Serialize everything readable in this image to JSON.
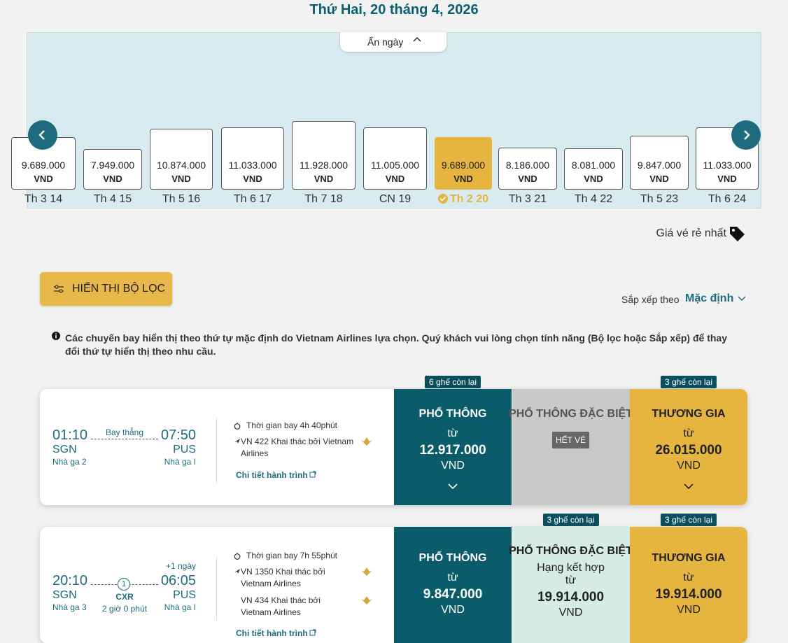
{
  "header": {
    "date": "Thứ Hai, 20 tháng 4, 2026",
    "hide_dates": "Ẩn ngày"
  },
  "date_strip": [
    {
      "price": "9.689.000",
      "currency": "VND",
      "day": "Th 3 14"
    },
    {
      "price": "7.949.000",
      "currency": "VND",
      "day": "Th 4 15"
    },
    {
      "price": "10.874.000",
      "currency": "VND",
      "day": "Th 5 16"
    },
    {
      "price": "11.033.000",
      "currency": "VND",
      "day": "Th 6 17"
    },
    {
      "price": "11.928.000",
      "currency": "VND",
      "day": "Th 7 18"
    },
    {
      "price": "11.005.000",
      "currency": "VND",
      "day": "CN 19"
    },
    {
      "price": "9.689.000",
      "currency": "VND",
      "day": "Th 2 20",
      "selected": true
    },
    {
      "price": "8.186.000",
      "currency": "VND",
      "day": "Th 3 21"
    },
    {
      "price": "8.081.000",
      "currency": "VND",
      "day": "Th 4 22"
    },
    {
      "price": "9.847.000",
      "currency": "VND",
      "day": "Th 5 23"
    },
    {
      "price": "11.033.000",
      "currency": "VND",
      "day": "Th 6 24"
    }
  ],
  "cheapest_label": "Giá vé rẻ nhất",
  "filter_button": "HIỂN THỊ BỘ LỌC",
  "sort": {
    "label": "Sắp xếp theo",
    "value": "Mặc định"
  },
  "notice": "Các chuyến bay hiển thị theo thứ tự mặc định do Vietnam Airlines lựa chọn. Quý khách vui lòng chọn tính năng (Bộ lọc hoặc Sắp xếp) để thay đổi thứ tự hiển thị theo nhu cầu.",
  "flights": [
    {
      "depart": {
        "time": "01:10",
        "code": "SGN",
        "terminal": "Nhà ga 2"
      },
      "arrive": {
        "time": "07:50",
        "code": "PUS",
        "terminal": "Nhà ga I"
      },
      "stop": "Bay thẳng",
      "duration": "Thời gian bay 4h 40phút",
      "segments": [
        "VN 422 Khai thác bởi Vietnam Airlines"
      ],
      "details": "Chi tiết hành trình",
      "fares": [
        {
          "badge": "6 ghế còn lại",
          "class": "PHỔ THÔNG",
          "from": "từ",
          "price": "12.917.000",
          "currency": "VND"
        },
        {
          "class": "PHỔ THÔNG ĐẶC BIỆT",
          "status": "HẾT VÉ"
        },
        {
          "badge": "3 ghế còn lại",
          "class": "THƯƠNG GIA",
          "from": "từ",
          "price": "26.015.000",
          "currency": "VND"
        }
      ]
    },
    {
      "depart": {
        "time": "20:10",
        "code": "SGN",
        "terminal": "Nhà ga 3"
      },
      "arrive": {
        "time": "06:05",
        "code": "PUS",
        "terminal": "Nhà ga I",
        "next_day": "+1 ngày"
      },
      "stop_count": "1",
      "stop_code": "CXR",
      "layover": "2 giờ 0 phút",
      "duration": "Thời gian bay 7h 55phút",
      "segments": [
        "VN 1350 Khai thác bởi Vietnam Airlines",
        "VN 434 Khai thác bởi Vietnam Airlines"
      ],
      "details": "Chi tiết hành trình",
      "fares": [
        {
          "class": "PHỔ THÔNG",
          "from": "từ",
          "price": "9.847.000",
          "currency": "VND"
        },
        {
          "badge": "3 ghế còn lại",
          "class": "PHỔ THÔNG ĐẶC BIỆT",
          "subtitle": "Hạng kết hợp",
          "from": "từ",
          "price": "19.914.000",
          "currency": "VND"
        },
        {
          "badge": "3 ghế còn lại",
          "class": "THƯƠNG GIA",
          "from": "từ",
          "price": "19.914.000",
          "currency": "VND"
        }
      ]
    }
  ]
}
